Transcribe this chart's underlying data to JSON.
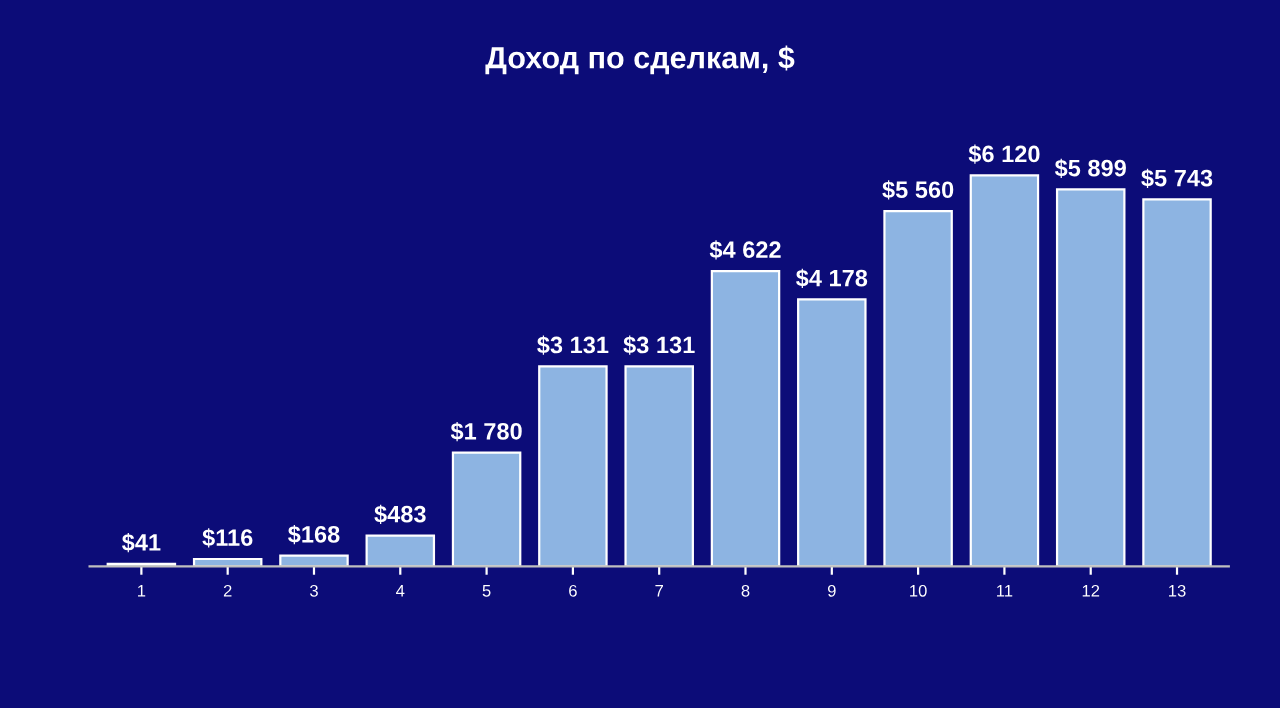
{
  "chart_data": {
    "type": "bar",
    "title": "Доход по сделкам, $",
    "categories": [
      "1",
      "2",
      "3",
      "4",
      "5",
      "6",
      "7",
      "8",
      "9",
      "10",
      "11",
      "12",
      "13"
    ],
    "values": [
      41,
      116,
      168,
      483,
      1780,
      3131,
      3131,
      4622,
      4178,
      5560,
      6120,
      5899,
      5743
    ],
    "value_labels": [
      "$41",
      "$116",
      "$168",
      "$483",
      "$1 780",
      "$3 131",
      "$3 131",
      "$4 622",
      "$4 178",
      "$5 560",
      "$6 120",
      "$5 899",
      "$5 743"
    ],
    "color": "#8db4e2",
    "grid": false,
    "legend": false
  }
}
